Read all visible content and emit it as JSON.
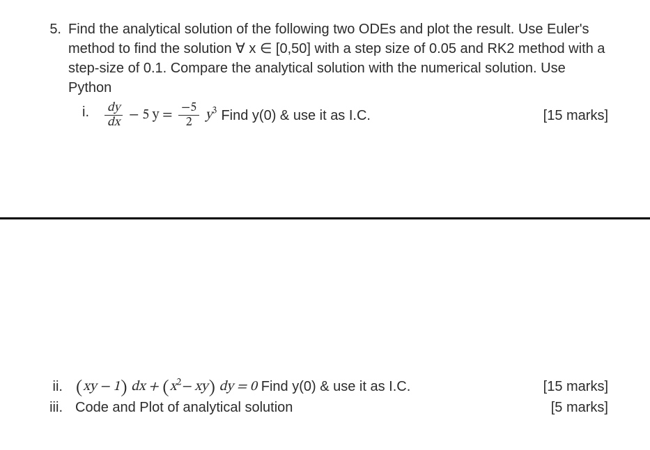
{
  "colors": {
    "text": "#2b2b2b",
    "background": "#ffffff",
    "rule": "#000000"
  },
  "typography": {
    "body_fontsize_pt": 15,
    "math_family": "Cambria Math"
  },
  "question": {
    "number": "5.",
    "prompt": "Find the analytical solution of the following two ODEs and plot the result. Use Euler's method to find the solution ∀ x ∈ [0,50] with a step size of 0.05 and RK2 method with a step-size of 0.1. Compare the analytical solution with the numerical solution. Use Python"
  },
  "parts": {
    "i": {
      "label": "i.",
      "eq_dy": "dy",
      "eq_dx": "dx",
      "eq_linear": "− 5 y =",
      "eq_num": "−5",
      "eq_den": "2",
      "eq_ycub_base": "y",
      "eq_ycub_exp": "3",
      "tail": "Find y(0) & use it as I.C.",
      "marks": "[15 marks]"
    },
    "ii": {
      "label": "ii.",
      "lpar1": "(",
      "term1": "xy − 1",
      "rpar1": ")",
      "dx": "dx +",
      "lpar2": "(",
      "term2_a": "x",
      "term2_exp": "2",
      "term2_b": "− xy",
      "rpar2": ")",
      "dy": "dy = 0",
      "tail": "Find y(0)  &  use it as I.C.",
      "marks": "[15 marks]"
    },
    "iii": {
      "label": "iii.",
      "text": "Code and Plot of analytical solution",
      "marks": "[5 marks]"
    }
  }
}
